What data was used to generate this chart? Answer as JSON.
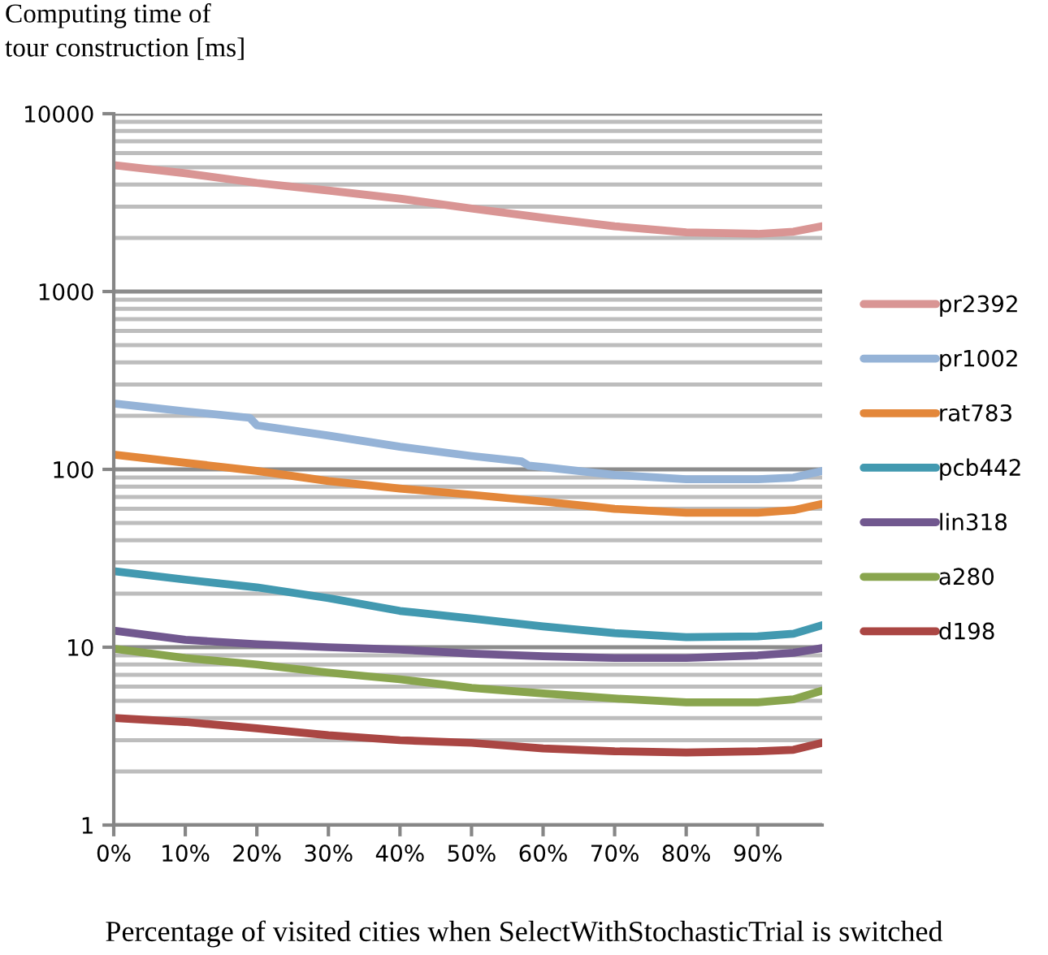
{
  "chart_data": {
    "type": "line",
    "ylabel": "Computing time of\ntour construction [ms]",
    "xlabel": "Percentage of visited cities when SelectWithStochasticTrial is switched",
    "x": [
      0,
      10,
      20,
      30,
      40,
      50,
      60,
      70,
      80,
      90,
      95,
      99
    ],
    "xlim": [
      0,
      99
    ],
    "xticks": [
      {
        "value": 0,
        "label": "0%"
      },
      {
        "value": 10,
        "label": "10%"
      },
      {
        "value": 20,
        "label": "20%"
      },
      {
        "value": 30,
        "label": "30%"
      },
      {
        "value": 40,
        "label": "40%"
      },
      {
        "value": 50,
        "label": "50%"
      },
      {
        "value": 60,
        "label": "60%"
      },
      {
        "value": 70,
        "label": "70%"
      },
      {
        "value": 80,
        "label": "80%"
      },
      {
        "value": 90,
        "label": "90%"
      }
    ],
    "log": "y",
    "ylim": [
      1,
      10000
    ],
    "yticks": [
      1,
      10,
      100,
      1000,
      10000
    ],
    "grid": "y",
    "legend": "right",
    "marker": "none",
    "line_style": "solid",
    "series": [
      {
        "name": "pr2392",
        "color": "#d99594",
        "values": [
          5140,
          4620,
          4080,
          3700,
          3330,
          2930,
          2600,
          2330,
          2150,
          2110,
          2170,
          2330
        ]
      },
      {
        "name": "pr1002",
        "color": "#95b3d7",
        "x": [
          0,
          10,
          19,
          20,
          30,
          40,
          50,
          57,
          58,
          60,
          70,
          80,
          90,
          95,
          99
        ],
        "values": [
          235,
          212,
          195,
          177,
          155,
          134,
          119,
          111,
          105,
          103,
          93,
          88,
          88,
          90,
          98
        ]
      },
      {
        "name": "rat783",
        "color": "#e3873a",
        "values": [
          121,
          109,
          98,
          86,
          78,
          72,
          66,
          60,
          57,
          57,
          59,
          64
        ]
      },
      {
        "name": "pcb442",
        "color": "#4299b0",
        "values": [
          26.8,
          24,
          21.7,
          18.9,
          16,
          14.5,
          13.1,
          12,
          11.4,
          11.5,
          11.9,
          13.3
        ]
      },
      {
        "name": "lin318",
        "color": "#71588f",
        "values": [
          12.4,
          11,
          10.4,
          10,
          9.7,
          9.2,
          8.9,
          8.7,
          8.7,
          9,
          9.3,
          9.9
        ]
      },
      {
        "name": "a280",
        "color": "#89a54e",
        "values": [
          9.8,
          8.7,
          8,
          7.2,
          6.6,
          5.9,
          5.5,
          5.15,
          4.9,
          4.9,
          5.1,
          5.7
        ]
      },
      {
        "name": "d198",
        "color": "#aa4643",
        "values": [
          4,
          3.8,
          3.5,
          3.2,
          3,
          2.9,
          2.7,
          2.6,
          2.56,
          2.6,
          2.65,
          2.9
        ]
      }
    ]
  }
}
